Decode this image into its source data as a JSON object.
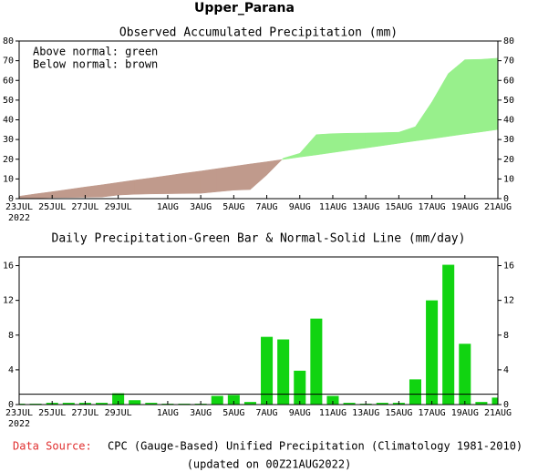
{
  "title": "Upper_Parana",
  "footer": {
    "source_label": "Data Source:",
    "source_text": "CPC (Gauge-Based) Unified Precipitation (Climatology 1981-2010)",
    "updated": "(updated on 00Z21AUG2022)"
  },
  "chart_data": [
    {
      "type": "accumulated-area",
      "title": "Observed Accumulated Precipitation (mm)",
      "annotations": [
        "Above normal: green",
        "Below normal: brown"
      ],
      "categories": [
        "23JUL",
        null,
        "25JUL",
        null,
        "27JUL",
        null,
        "29JUL",
        null,
        null,
        "1AUG",
        null,
        "3AUG",
        null,
        "5AUG",
        null,
        "7AUG",
        null,
        "9AUG",
        null,
        "11AUG",
        null,
        "13AUG",
        null,
        "15AUG",
        null,
        "17AUG",
        null,
        "19AUG",
        null,
        "21AUG"
      ],
      "x_year_label": "2022",
      "series": [
        {
          "name": "Observed",
          "values": [
            0,
            0.3,
            0.5,
            0.6,
            0.7,
            0.8,
            1.8,
            2.2,
            2.4,
            2.5,
            2.6,
            2.7,
            3.5,
            4.3,
            4.6,
            12,
            20.5,
            23,
            32.5,
            33,
            33.2,
            33.3,
            33.5,
            33.7,
            36.5,
            49,
            63.5,
            70.5,
            70.7,
            71.3
          ]
        },
        {
          "name": "Normal",
          "values": [
            1.2,
            2.4,
            3.5,
            4.7,
            5.9,
            7.0,
            8.2,
            9.4,
            10.5,
            11.7,
            12.9,
            14.0,
            15.2,
            16.4,
            17.6,
            18.7,
            19.9,
            21.1,
            22.2,
            23.4,
            24.6,
            25.7,
            26.9,
            28.1,
            29.3,
            30.4,
            31.6,
            32.8,
            33.9,
            35.1
          ]
        }
      ],
      "above_color": "#98f08c",
      "below_color": "#c09a8c",
      "ylim": [
        0,
        80
      ],
      "yticks": [
        0,
        10,
        20,
        30,
        40,
        50,
        60,
        70,
        80
      ],
      "y2lim": [
        0,
        80
      ],
      "y2ticks": [
        0,
        10,
        20,
        30,
        40,
        50,
        60,
        70,
        80
      ]
    },
    {
      "type": "bar-line",
      "title": "Daily Precipitation-Green Bar & Normal-Solid Line (mm/day)",
      "categories": [
        "23JUL",
        null,
        "25JUL",
        null,
        "27JUL",
        null,
        "29JUL",
        null,
        null,
        "1AUG",
        null,
        "3AUG",
        null,
        "5AUG",
        null,
        "7AUG",
        null,
        "9AUG",
        null,
        "11AUG",
        null,
        "13AUG",
        null,
        "15AUG",
        null,
        "17AUG",
        null,
        "19AUG",
        null,
        "21AUG"
      ],
      "x_year_label": "2022",
      "series": [
        {
          "name": "Daily Precipitation",
          "color": "#11d411",
          "values": [
            0.1,
            0.1,
            0.2,
            0.2,
            0.2,
            0.2,
            1.3,
            0.5,
            0.2,
            0.1,
            0.1,
            0.1,
            1.0,
            1.1,
            0.3,
            7.8,
            7.5,
            3.9,
            9.9,
            1.0,
            0.2,
            0.1,
            0.2,
            0.2,
            2.9,
            12.0,
            16.1,
            7.0,
            0.3,
            0.8
          ]
        },
        {
          "name": "Normal",
          "color": "#000000",
          "values": [
            1.2,
            1.2,
            1.2,
            1.2,
            1.2,
            1.2,
            1.2,
            1.2,
            1.2,
            1.2,
            1.2,
            1.2,
            1.2,
            1.2,
            1.2,
            1.2,
            1.2,
            1.2,
            1.2,
            1.2,
            1.2,
            1.2,
            1.2,
            1.2,
            1.2,
            1.2,
            1.2,
            1.2,
            1.2,
            1.2
          ]
        }
      ],
      "ylim": [
        0,
        17
      ],
      "yticks": [
        0,
        4,
        8,
        12,
        16
      ],
      "y2lim": [
        0,
        17
      ],
      "y2ticks": [
        0,
        4,
        8,
        12,
        16
      ]
    }
  ]
}
